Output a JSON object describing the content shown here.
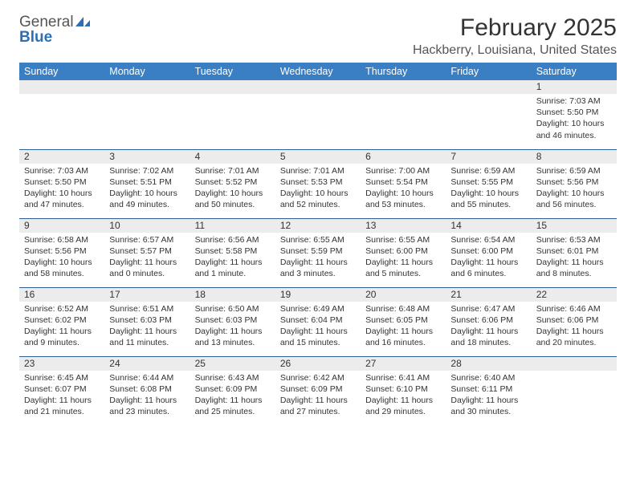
{
  "logo": {
    "word1": "General",
    "word2": "Blue"
  },
  "title": "February 2025",
  "location": "Hackberry, Louisiana, United States",
  "colors": {
    "header_bg": "#3a7fc4",
    "header_text": "#ffffff",
    "row_border": "#2d5f93",
    "daynum_bg": "#ececec",
    "logo_blue": "#2d6fb5",
    "text": "#333333"
  },
  "day_headers": [
    "Sunday",
    "Monday",
    "Tuesday",
    "Wednesday",
    "Thursday",
    "Friday",
    "Saturday"
  ],
  "weeks": [
    [
      null,
      null,
      null,
      null,
      null,
      null,
      {
        "n": "1",
        "sr": "Sunrise: 7:03 AM",
        "ss": "Sunset: 5:50 PM",
        "dl": "Daylight: 10 hours and 46 minutes."
      }
    ],
    [
      {
        "n": "2",
        "sr": "Sunrise: 7:03 AM",
        "ss": "Sunset: 5:50 PM",
        "dl": "Daylight: 10 hours and 47 minutes."
      },
      {
        "n": "3",
        "sr": "Sunrise: 7:02 AM",
        "ss": "Sunset: 5:51 PM",
        "dl": "Daylight: 10 hours and 49 minutes."
      },
      {
        "n": "4",
        "sr": "Sunrise: 7:01 AM",
        "ss": "Sunset: 5:52 PM",
        "dl": "Daylight: 10 hours and 50 minutes."
      },
      {
        "n": "5",
        "sr": "Sunrise: 7:01 AM",
        "ss": "Sunset: 5:53 PM",
        "dl": "Daylight: 10 hours and 52 minutes."
      },
      {
        "n": "6",
        "sr": "Sunrise: 7:00 AM",
        "ss": "Sunset: 5:54 PM",
        "dl": "Daylight: 10 hours and 53 minutes."
      },
      {
        "n": "7",
        "sr": "Sunrise: 6:59 AM",
        "ss": "Sunset: 5:55 PM",
        "dl": "Daylight: 10 hours and 55 minutes."
      },
      {
        "n": "8",
        "sr": "Sunrise: 6:59 AM",
        "ss": "Sunset: 5:56 PM",
        "dl": "Daylight: 10 hours and 56 minutes."
      }
    ],
    [
      {
        "n": "9",
        "sr": "Sunrise: 6:58 AM",
        "ss": "Sunset: 5:56 PM",
        "dl": "Daylight: 10 hours and 58 minutes."
      },
      {
        "n": "10",
        "sr": "Sunrise: 6:57 AM",
        "ss": "Sunset: 5:57 PM",
        "dl": "Daylight: 11 hours and 0 minutes."
      },
      {
        "n": "11",
        "sr": "Sunrise: 6:56 AM",
        "ss": "Sunset: 5:58 PM",
        "dl": "Daylight: 11 hours and 1 minute."
      },
      {
        "n": "12",
        "sr": "Sunrise: 6:55 AM",
        "ss": "Sunset: 5:59 PM",
        "dl": "Daylight: 11 hours and 3 minutes."
      },
      {
        "n": "13",
        "sr": "Sunrise: 6:55 AM",
        "ss": "Sunset: 6:00 PM",
        "dl": "Daylight: 11 hours and 5 minutes."
      },
      {
        "n": "14",
        "sr": "Sunrise: 6:54 AM",
        "ss": "Sunset: 6:00 PM",
        "dl": "Daylight: 11 hours and 6 minutes."
      },
      {
        "n": "15",
        "sr": "Sunrise: 6:53 AM",
        "ss": "Sunset: 6:01 PM",
        "dl": "Daylight: 11 hours and 8 minutes."
      }
    ],
    [
      {
        "n": "16",
        "sr": "Sunrise: 6:52 AM",
        "ss": "Sunset: 6:02 PM",
        "dl": "Daylight: 11 hours and 9 minutes."
      },
      {
        "n": "17",
        "sr": "Sunrise: 6:51 AM",
        "ss": "Sunset: 6:03 PM",
        "dl": "Daylight: 11 hours and 11 minutes."
      },
      {
        "n": "18",
        "sr": "Sunrise: 6:50 AM",
        "ss": "Sunset: 6:03 PM",
        "dl": "Daylight: 11 hours and 13 minutes."
      },
      {
        "n": "19",
        "sr": "Sunrise: 6:49 AM",
        "ss": "Sunset: 6:04 PM",
        "dl": "Daylight: 11 hours and 15 minutes."
      },
      {
        "n": "20",
        "sr": "Sunrise: 6:48 AM",
        "ss": "Sunset: 6:05 PM",
        "dl": "Daylight: 11 hours and 16 minutes."
      },
      {
        "n": "21",
        "sr": "Sunrise: 6:47 AM",
        "ss": "Sunset: 6:06 PM",
        "dl": "Daylight: 11 hours and 18 minutes."
      },
      {
        "n": "22",
        "sr": "Sunrise: 6:46 AM",
        "ss": "Sunset: 6:06 PM",
        "dl": "Daylight: 11 hours and 20 minutes."
      }
    ],
    [
      {
        "n": "23",
        "sr": "Sunrise: 6:45 AM",
        "ss": "Sunset: 6:07 PM",
        "dl": "Daylight: 11 hours and 21 minutes."
      },
      {
        "n": "24",
        "sr": "Sunrise: 6:44 AM",
        "ss": "Sunset: 6:08 PM",
        "dl": "Daylight: 11 hours and 23 minutes."
      },
      {
        "n": "25",
        "sr": "Sunrise: 6:43 AM",
        "ss": "Sunset: 6:09 PM",
        "dl": "Daylight: 11 hours and 25 minutes."
      },
      {
        "n": "26",
        "sr": "Sunrise: 6:42 AM",
        "ss": "Sunset: 6:09 PM",
        "dl": "Daylight: 11 hours and 27 minutes."
      },
      {
        "n": "27",
        "sr": "Sunrise: 6:41 AM",
        "ss": "Sunset: 6:10 PM",
        "dl": "Daylight: 11 hours and 29 minutes."
      },
      {
        "n": "28",
        "sr": "Sunrise: 6:40 AM",
        "ss": "Sunset: 6:11 PM",
        "dl": "Daylight: 11 hours and 30 minutes."
      },
      null
    ]
  ]
}
